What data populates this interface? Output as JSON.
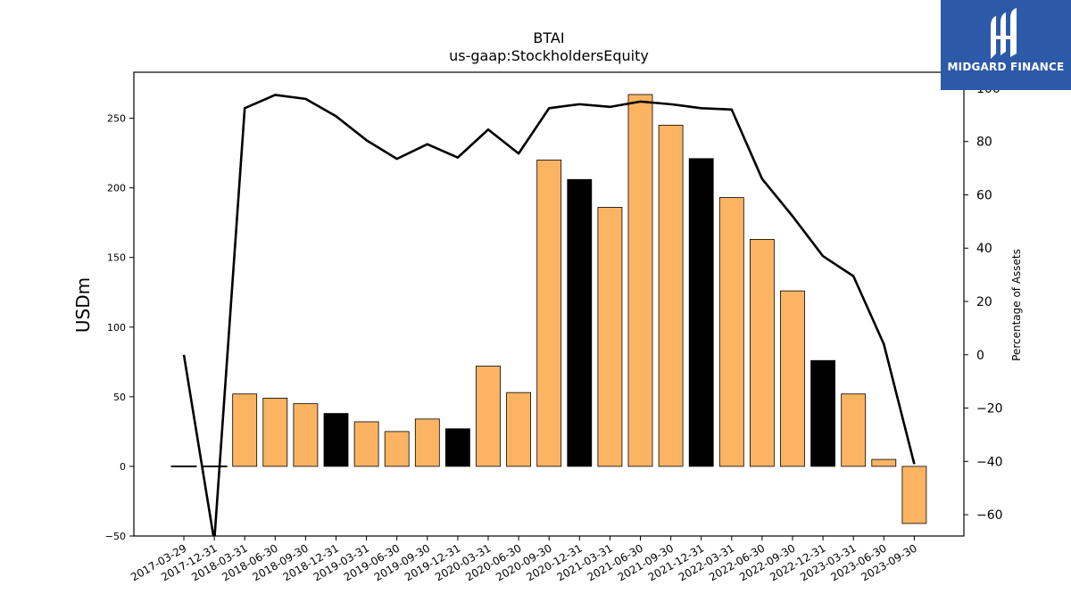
{
  "chart_data": {
    "type": "bar",
    "title": "BTAI",
    "subtitle": "us-gaap:StockholdersEquity",
    "ylabel": "USDm",
    "y2label": "Percentage of Assets",
    "ylim": [
      -50,
      283
    ],
    "y2lim": [
      -68,
      106
    ],
    "yticks": [
      -50,
      0,
      50,
      100,
      150,
      200,
      250
    ],
    "y2ticks": [
      -60,
      -40,
      -20,
      0,
      20,
      40,
      60,
      80,
      100
    ],
    "categories": [
      "2017-03-29",
      "2017-12-31",
      "2018-03-31",
      "2018-06-30",
      "2018-09-30",
      "2018-12-31",
      "2019-03-31",
      "2019-06-30",
      "2019-09-30",
      "2019-12-31",
      "2020-03-31",
      "2020-06-30",
      "2020-09-30",
      "2020-12-31",
      "2021-03-31",
      "2021-06-30",
      "2021-09-30",
      "2021-12-31",
      "2022-03-31",
      "2022-06-30",
      "2022-09-30",
      "2022-12-31",
      "2023-03-31",
      "2023-06-30",
      "2023-09-30"
    ],
    "series": [
      {
        "kind": "bar",
        "values": [
          0,
          0,
          52,
          49,
          45,
          38,
          32,
          25,
          34,
          27,
          72,
          53,
          220,
          206,
          186,
          267,
          245,
          221,
          193,
          163,
          126,
          76,
          52,
          5,
          -41
        ],
        "bar_colors": [
          "#fdb462",
          "#fdb462",
          "#fdb462",
          "#fdb462",
          "#fdb462",
          "#000000",
          "#fdb462",
          "#fdb462",
          "#fdb462",
          "#000000",
          "#fdb462",
          "#fdb462",
          "#fdb462",
          "#000000",
          "#fdb462",
          "#fdb462",
          "#fdb462",
          "#000000",
          "#fdb462",
          "#fdb462",
          "#fdb462",
          "#000000",
          "#fdb462",
          "#fdb462",
          "#fdb462"
        ]
      },
      {
        "kind": "line",
        "axis": "right",
        "color": "#000000",
        "values": [
          0,
          -70,
          92.5,
          97.5,
          96,
          89.5,
          80.5,
          73.5,
          79,
          74,
          84.5,
          75.5,
          92.5,
          94,
          93,
          95,
          94,
          92.5,
          92,
          66,
          52,
          37,
          29.5,
          4,
          -41
        ]
      }
    ],
    "grid": false,
    "legend": "none"
  },
  "logo": {
    "text": "MIDGARD FINANCE",
    "icon": "midgard-logo-icon",
    "background": "#2d5aa8"
  }
}
